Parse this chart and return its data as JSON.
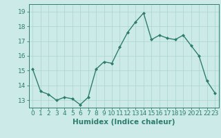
{
  "x": [
    0,
    1,
    2,
    3,
    4,
    5,
    6,
    7,
    8,
    9,
    10,
    11,
    12,
    13,
    14,
    15,
    16,
    17,
    18,
    19,
    20,
    21,
    22,
    23
  ],
  "y": [
    15.1,
    13.6,
    13.4,
    13.0,
    13.2,
    13.1,
    12.7,
    13.2,
    15.1,
    15.6,
    15.5,
    16.6,
    17.6,
    18.3,
    18.9,
    17.1,
    17.4,
    17.2,
    17.1,
    17.4,
    16.7,
    16.0,
    14.3,
    13.5
  ],
  "xlabel": "Humidex (Indice chaleur)",
  "line_color": "#2d7d6e",
  "bg_color": "#cceae8",
  "grid_color": "#aad4d0",
  "tick_color": "#2d7d6e",
  "xlim": [
    -0.5,
    23.5
  ],
  "ylim": [
    12.5,
    19.5
  ],
  "yticks": [
    13,
    14,
    15,
    16,
    17,
    18,
    19
  ],
  "xticks": [
    0,
    1,
    2,
    3,
    4,
    5,
    6,
    7,
    8,
    9,
    10,
    11,
    12,
    13,
    14,
    15,
    16,
    17,
    18,
    19,
    20,
    21,
    22,
    23
  ],
  "xtick_labels": [
    "0",
    "1",
    "2",
    "3",
    "4",
    "5",
    "6",
    "7",
    "8",
    "9",
    "10",
    "11",
    "12",
    "13",
    "14",
    "15",
    "16",
    "17",
    "18",
    "19",
    "20",
    "21",
    "22",
    "23"
  ],
  "marker": "D",
  "marker_size": 2.0,
  "line_width": 1.0,
  "xlabel_fontsize": 7.5,
  "tick_fontsize": 6.5
}
